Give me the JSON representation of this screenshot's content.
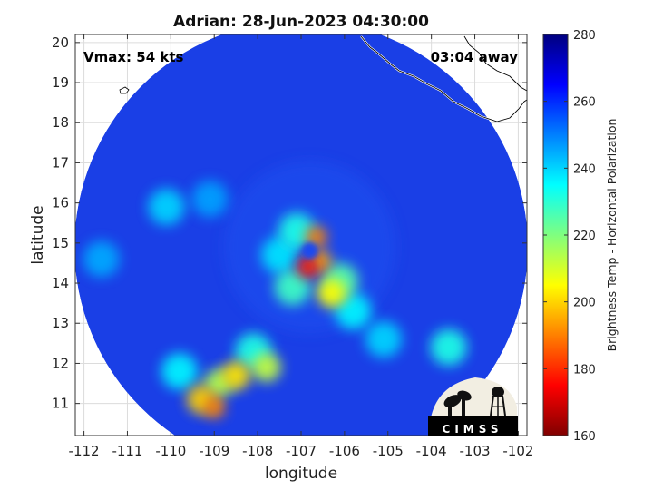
{
  "chart_data": {
    "type": "heatmap",
    "title": "Adrian: 28-Jun-2023 04:30:00",
    "xlabel": "longitude",
    "ylabel": "latitude",
    "xlim": [
      -112.2,
      -101.8
    ],
    "ylim": [
      10.2,
      20.2
    ],
    "xticks": [
      -112,
      -111,
      -110,
      -109,
      -108,
      -107,
      -106,
      -105,
      -104,
      -103,
      -102
    ],
    "yticks": [
      11,
      12,
      13,
      14,
      15,
      16,
      17,
      18,
      19,
      20
    ],
    "grid": true,
    "annotations": {
      "vmax": "Vmax: 54 kts",
      "time_away": "03:04 away"
    },
    "colorbar": {
      "label": "Brightness Temp - Horizontal Polarization",
      "min": 160,
      "max": 280,
      "ticks": [
        160,
        180,
        200,
        220,
        240,
        260,
        280
      ]
    },
    "swath_center": {
      "lon": -107.0,
      "lat": 14.9
    },
    "storm_center": {
      "lon": -106.8,
      "lat": 14.9
    },
    "features": [
      {
        "lon": -106.85,
        "lat": 14.4,
        "value": 178
      },
      {
        "lon": -106.55,
        "lat": 14.55,
        "value": 195
      },
      {
        "lon": -106.65,
        "lat": 15.15,
        "value": 190
      },
      {
        "lon": -106.3,
        "lat": 13.75,
        "value": 205
      },
      {
        "lon": -106.1,
        "lat": 14.05,
        "value": 225
      },
      {
        "lon": -107.2,
        "lat": 13.9,
        "value": 228
      },
      {
        "lon": -107.1,
        "lat": 15.3,
        "value": 232
      },
      {
        "lon": -107.5,
        "lat": 14.7,
        "value": 238
      },
      {
        "lon": -105.8,
        "lat": 13.3,
        "value": 236
      },
      {
        "lon": -105.1,
        "lat": 12.6,
        "value": 240
      },
      {
        "lon": -103.6,
        "lat": 12.4,
        "value": 232
      },
      {
        "lon": -108.5,
        "lat": 11.7,
        "value": 202
      },
      {
        "lon": -108.9,
        "lat": 11.5,
        "value": 215
      },
      {
        "lon": -109.3,
        "lat": 11.1,
        "value": 200
      },
      {
        "lon": -109.0,
        "lat": 10.9,
        "value": 190
      },
      {
        "lon": -107.8,
        "lat": 11.9,
        "value": 212
      },
      {
        "lon": -108.1,
        "lat": 12.3,
        "value": 232
      },
      {
        "lon": -109.8,
        "lat": 11.8,
        "value": 236
      },
      {
        "lon": -110.1,
        "lat": 15.9,
        "value": 240
      },
      {
        "lon": -111.6,
        "lat": 14.6,
        "value": 245
      },
      {
        "lon": -109.1,
        "lat": 16.1,
        "value": 246
      }
    ]
  },
  "logo": {
    "text": "CIMSS"
  }
}
